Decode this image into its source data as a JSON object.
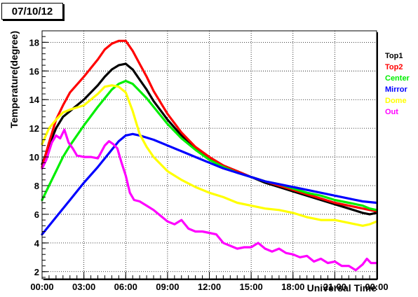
{
  "date_label": "07/10/12",
  "chart_data": {
    "type": "line",
    "xlabel": "Universal Time",
    "ylabel": "Temperature(degree)",
    "xlim": [
      0,
      24
    ],
    "ylim": [
      1.5,
      18.8
    ],
    "grid": true,
    "legend_position": "right",
    "x_ticks": [
      0,
      3,
      6,
      9,
      12,
      15,
      18,
      21,
      24
    ],
    "x_tick_labels": [
      "00:00",
      "03:00",
      "06:00",
      "09:00",
      "12:00",
      "15:00",
      "18:00",
      "21:00",
      "00:00"
    ],
    "y_ticks": [
      2,
      4,
      6,
      8,
      10,
      12,
      14,
      16,
      18
    ],
    "y_tick_labels": [
      "2",
      "4",
      "6",
      "8",
      "10",
      "12",
      "14",
      "16",
      "18"
    ],
    "series": [
      {
        "name": "Top1",
        "color": "#000000",
        "x": [
          0,
          0.5,
          1,
          1.5,
          2,
          3,
          4,
          4.5,
          5,
          5.5,
          6,
          6.5,
          7,
          7.5,
          8,
          9,
          10,
          11,
          12,
          13,
          14,
          15,
          16,
          17,
          18,
          19,
          20,
          21,
          22,
          23,
          23.5,
          24
        ],
        "y": [
          9.5,
          10.8,
          12.0,
          12.8,
          13.2,
          14.0,
          15.0,
          15.6,
          16.1,
          16.4,
          16.5,
          16.1,
          15.4,
          14.7,
          13.9,
          12.6,
          11.5,
          10.6,
          9.9,
          9.4,
          9.0,
          8.6,
          8.2,
          7.9,
          7.6,
          7.3,
          7.0,
          6.7,
          6.4,
          6.1,
          6.0,
          6.1
        ]
      },
      {
        "name": "Top2",
        "color": "#ff0000",
        "x": [
          0,
          0.5,
          1,
          1.5,
          2,
          3,
          4,
          4.5,
          5,
          5.5,
          6,
          6.5,
          7,
          7.5,
          8,
          9,
          10,
          11,
          12,
          13,
          14,
          15,
          16,
          17,
          18,
          19,
          20,
          21,
          22,
          23,
          23.5,
          24
        ],
        "y": [
          9.3,
          11.0,
          12.6,
          13.6,
          14.5,
          15.6,
          16.8,
          17.5,
          17.9,
          18.1,
          18.1,
          17.4,
          16.5,
          15.6,
          14.6,
          13.0,
          11.7,
          10.7,
          10.0,
          9.4,
          9.0,
          8.6,
          8.3,
          8.0,
          7.7,
          7.4,
          7.1,
          6.8,
          6.6,
          6.4,
          6.3,
          6.2
        ]
      },
      {
        "name": "Center",
        "color": "#00ee00",
        "x": [
          0,
          0.5,
          1,
          1.5,
          2,
          3,
          4,
          4.5,
          5,
          5.5,
          6,
          6.5,
          7,
          7.5,
          8,
          9,
          10,
          11,
          12,
          13,
          14,
          15,
          16,
          17,
          18,
          19,
          20,
          21,
          22,
          23,
          23.5,
          24
        ],
        "y": [
          7.0,
          8.0,
          9.0,
          10.0,
          10.8,
          12.2,
          13.5,
          14.1,
          14.7,
          15.1,
          15.3,
          15.1,
          14.6,
          14.1,
          13.5,
          12.3,
          11.3,
          10.5,
          9.8,
          9.3,
          8.9,
          8.6,
          8.3,
          8.1,
          7.8,
          7.5,
          7.3,
          7.0,
          6.8,
          6.6,
          6.4,
          6.3
        ]
      },
      {
        "name": "Mirror",
        "color": "#0000ff",
        "x": [
          0,
          1,
          2,
          3,
          4,
          5,
          5.5,
          6,
          6.5,
          7,
          8,
          9,
          10,
          11,
          12,
          13,
          14,
          15,
          16,
          17,
          18,
          19,
          20,
          21,
          22,
          23,
          24
        ],
        "y": [
          4.6,
          5.8,
          7.0,
          8.2,
          9.3,
          10.5,
          11.1,
          11.5,
          11.6,
          11.5,
          11.2,
          10.8,
          10.4,
          10.0,
          9.6,
          9.2,
          8.9,
          8.6,
          8.3,
          8.1,
          7.9,
          7.7,
          7.5,
          7.3,
          7.1,
          6.9,
          6.8
        ]
      },
      {
        "name": "Dome",
        "color": "#ffff00",
        "x": [
          0,
          0.5,
          1,
          1.5,
          2,
          3,
          4,
          4.5,
          5,
          5.5,
          6,
          6.5,
          7,
          7.5,
          8,
          9,
          10,
          11,
          12,
          13,
          14,
          15,
          16,
          17,
          18,
          19,
          20,
          21,
          22,
          23,
          23.5,
          24
        ],
        "y": [
          10.9,
          12.0,
          12.6,
          13.1,
          13.3,
          13.6,
          14.4,
          14.9,
          15.0,
          14.9,
          14.5,
          13.2,
          11.6,
          10.7,
          10.0,
          9.0,
          8.4,
          7.9,
          7.5,
          7.2,
          6.8,
          6.6,
          6.4,
          6.3,
          6.1,
          5.8,
          5.6,
          5.6,
          5.4,
          5.2,
          5.3,
          5.5
        ]
      },
      {
        "name": "Out",
        "color": "#ff00ff",
        "x": [
          0,
          0.3,
          0.7,
          1,
          1.3,
          1.6,
          1.9,
          2.2,
          2.5,
          3,
          3.5,
          4,
          4.5,
          4.8,
          5.1,
          5.4,
          5.7,
          6,
          6.3,
          6.6,
          7,
          7.5,
          8,
          8.5,
          9,
          9.5,
          10,
          10.5,
          11,
          11.5,
          12,
          12.5,
          13,
          13.5,
          14,
          14.5,
          15,
          15.5,
          16,
          16.5,
          17,
          17.5,
          18,
          18.5,
          19,
          19.5,
          20,
          20.5,
          21,
          21.5,
          22,
          22.5,
          23,
          23.3,
          23.6,
          24
        ],
        "y": [
          9.2,
          9.8,
          11.0,
          11.5,
          11.3,
          11.9,
          11.0,
          10.6,
          10.1,
          10.0,
          10.0,
          9.9,
          10.8,
          11.1,
          10.9,
          10.6,
          9.6,
          8.7,
          7.5,
          7.0,
          6.9,
          6.6,
          6.3,
          5.9,
          5.5,
          5.3,
          5.6,
          5.0,
          4.8,
          4.8,
          4.7,
          4.6,
          4.0,
          3.8,
          3.6,
          3.7,
          3.7,
          4.0,
          3.6,
          3.4,
          3.6,
          3.3,
          3.2,
          3.0,
          3.1,
          2.7,
          2.9,
          2.6,
          2.7,
          2.4,
          2.4,
          2.1,
          2.5,
          2.9,
          2.6,
          2.6
        ]
      }
    ]
  }
}
